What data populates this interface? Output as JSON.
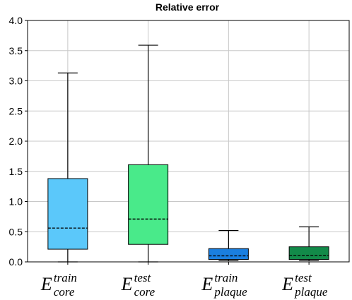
{
  "chart_data": {
    "type": "box",
    "title": "Relative error",
    "xlabel": "",
    "ylabel": "",
    "ylim": [
      0,
      4.0
    ],
    "yticks": [
      "0.0",
      "0.5",
      "1.0",
      "1.5",
      "2.0",
      "2.5",
      "3.0",
      "3.5",
      "4.0"
    ],
    "grid": true,
    "boxes": [
      {
        "label_main": "E",
        "label_sup": "train",
        "label_sub": "core",
        "min": 0.0,
        "q1": 0.21,
        "median": 0.56,
        "q3": 1.38,
        "max": 3.13,
        "color": "#5bc8fa"
      },
      {
        "label_main": "E",
        "label_sup": "test",
        "label_sub": "core",
        "min": 0.0,
        "q1": 0.29,
        "median": 0.71,
        "q3": 1.61,
        "max": 3.59,
        "color": "#49ea8a"
      },
      {
        "label_main": "E",
        "label_sup": "train",
        "label_sub": "plaque",
        "min": 0.02,
        "q1": 0.04,
        "median": 0.1,
        "q3": 0.22,
        "max": 0.52,
        "color": "#1a7fe0"
      },
      {
        "label_main": "E",
        "label_sup": "test",
        "label_sub": "plaque",
        "min": 0.02,
        "q1": 0.04,
        "median": 0.11,
        "q3": 0.25,
        "max": 0.58,
        "color": "#128a49"
      }
    ]
  }
}
